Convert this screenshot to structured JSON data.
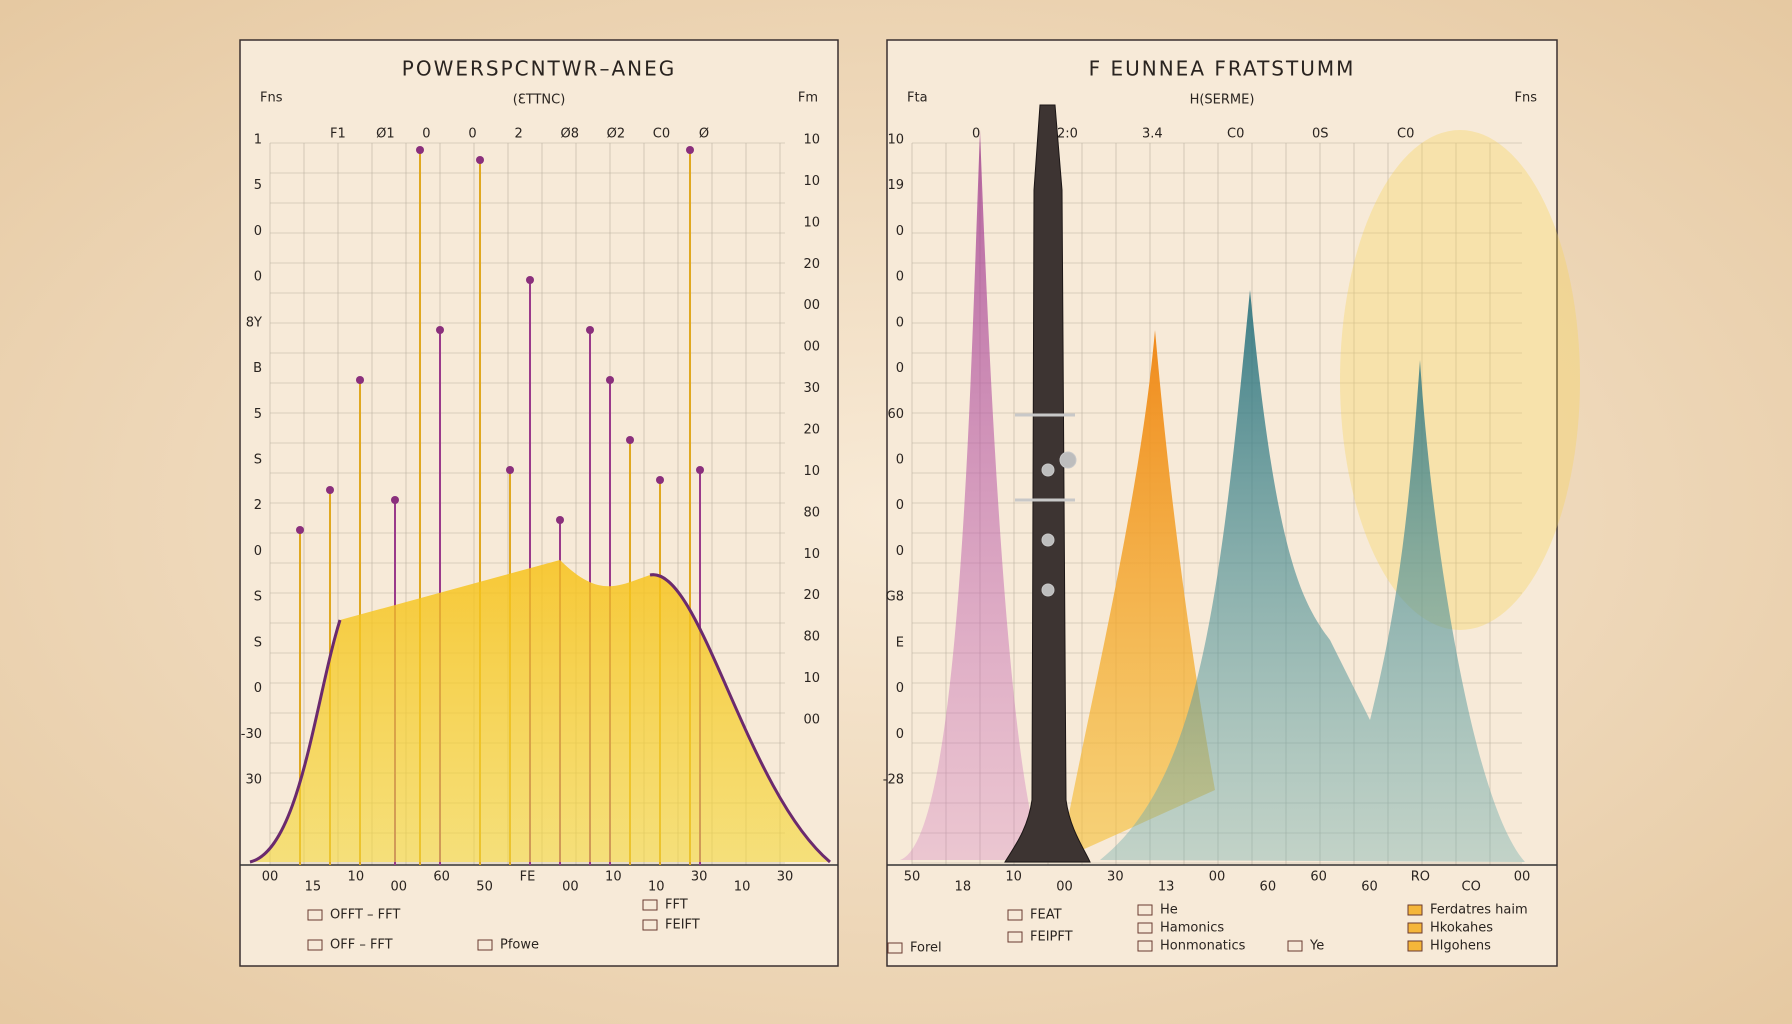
{
  "panels": [
    {
      "title": "POWERSPCNTWR–ANEG",
      "subtitle": "(ƐTTNC)",
      "corner_left": "Fns",
      "corner_right": "Fm",
      "top_labels": [
        "F1",
        "Ø1",
        "0",
        "0",
        "2",
        "Ø8",
        "Ø2",
        "C0",
        "Ø"
      ],
      "y_left": [
        "1",
        "5",
        "0",
        "0",
        "8Y",
        "B",
        "5",
        "S",
        "2",
        "0",
        "S",
        "S",
        "0",
        "-30",
        "30"
      ],
      "y_right": [
        "10",
        "10",
        "10",
        "20",
        "00",
        "00",
        "30",
        "20",
        "10",
        "80",
        "10",
        "20",
        "80",
        "10",
        "00"
      ],
      "x_labels": [
        "00",
        "15",
        "10",
        "00",
        "60",
        "50",
        "FE",
        "00",
        "10",
        "10",
        "30",
        "10",
        "30"
      ],
      "legend": [
        "OFFT – FFT",
        "OFF – FFT",
        "Pfowe",
        "FFT",
        "FEIFT"
      ]
    },
    {
      "title": "F EUNNEA FRATSTUMM",
      "subtitle": "H(SERME)",
      "corner_left": "Fta",
      "corner_right": "Fns",
      "top_labels": [
        "0",
        "2:0",
        "3.4",
        "C0",
        "0S",
        "C0"
      ],
      "y_left": [
        "10",
        "19",
        "0",
        "0",
        "0",
        "0",
        "60",
        "0",
        "0",
        "0",
        "G8",
        "E",
        "0",
        "0",
        "-28"
      ],
      "y_right": [],
      "x_labels": [
        "50",
        "18",
        "10",
        "00",
        "30",
        "13",
        "00",
        "60",
        "60",
        "60",
        "RO",
        "CO",
        "00"
      ],
      "legend": [
        "FEAT",
        "FEIPFT",
        "Forel",
        "He",
        "Hamonics",
        "Honmonatics",
        "Ye",
        "Ferdatres haim",
        "Hkokahes",
        "Hlgohens"
      ]
    }
  ]
}
